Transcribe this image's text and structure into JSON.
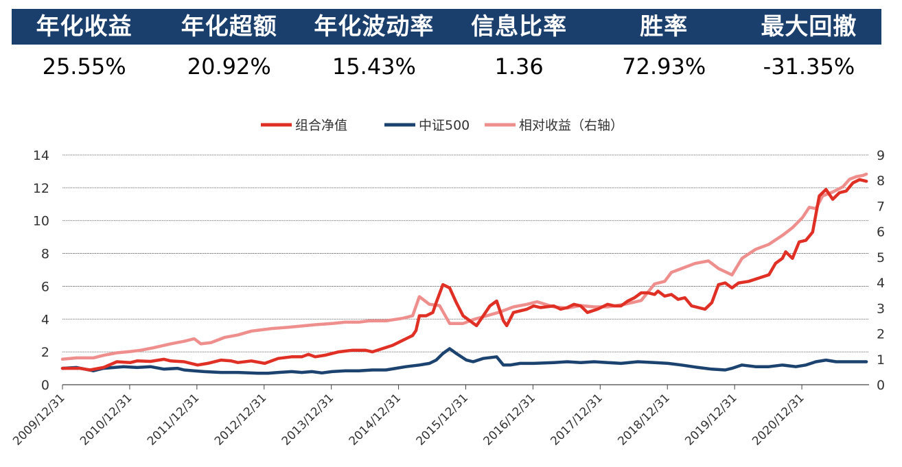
{
  "metrics": {
    "headers": [
      "年化收益",
      "年化超额",
      "年化波动率",
      "信息比率",
      "胜率",
      "最大回撤"
    ],
    "values": [
      "25.55%",
      "20.92%",
      "15.43%",
      "1.36",
      "72.93%",
      "-31.35%"
    ]
  },
  "chart_data": {
    "type": "line",
    "title": "",
    "legend_position": "top-center",
    "grid": true,
    "y_left": {
      "range": [
        0,
        14
      ],
      "ticks": [
        "0",
        "2",
        "4",
        "6",
        "8",
        "10",
        "12",
        "14"
      ]
    },
    "y_right": {
      "range": [
        0,
        9
      ],
      "ticks": [
        "0",
        "1",
        "2",
        "3",
        "4",
        "5",
        "6",
        "7",
        "8",
        "9"
      ]
    },
    "x_ticks": [
      "2009/12/31",
      "2010/12/31",
      "2011/12/31",
      "2012/12/31",
      "2013/12/31",
      "2014/12/31",
      "2015/12/31",
      "2016/12/31",
      "2017/12/31",
      "2018/12/31",
      "2019/12/31",
      "2020/12/31"
    ],
    "series": [
      {
        "name": "组合净值",
        "axis": "left",
        "color": "#e03025",
        "points": [
          [
            2009.99,
            1.0
          ],
          [
            2010.25,
            1.0
          ],
          [
            2010.4,
            0.9
          ],
          [
            2010.6,
            1.05
          ],
          [
            2010.8,
            1.4
          ],
          [
            2011.0,
            1.35
          ],
          [
            2011.1,
            1.45
          ],
          [
            2011.3,
            1.42
          ],
          [
            2011.5,
            1.55
          ],
          [
            2011.6,
            1.45
          ],
          [
            2011.8,
            1.4
          ],
          [
            2012.0,
            1.2
          ],
          [
            2012.15,
            1.3
          ],
          [
            2012.35,
            1.5
          ],
          [
            2012.5,
            1.45
          ],
          [
            2012.6,
            1.35
          ],
          [
            2012.8,
            1.45
          ],
          [
            2013.0,
            1.3
          ],
          [
            2013.2,
            1.6
          ],
          [
            2013.4,
            1.7
          ],
          [
            2013.55,
            1.7
          ],
          [
            2013.65,
            1.85
          ],
          [
            2013.75,
            1.7
          ],
          [
            2013.9,
            1.8
          ],
          [
            2014.1,
            2.0
          ],
          [
            2014.3,
            2.1
          ],
          [
            2014.5,
            2.1
          ],
          [
            2014.6,
            2.0
          ],
          [
            2014.75,
            2.2
          ],
          [
            2014.9,
            2.4
          ],
          [
            2015.0,
            2.6
          ],
          [
            2015.1,
            2.8
          ],
          [
            2015.2,
            3.0
          ],
          [
            2015.25,
            3.3
          ],
          [
            2015.3,
            4.2
          ],
          [
            2015.4,
            4.2
          ],
          [
            2015.5,
            4.4
          ],
          [
            2015.55,
            5.0
          ],
          [
            2015.65,
            6.1
          ],
          [
            2015.75,
            5.9
          ],
          [
            2015.85,
            5.0
          ],
          [
            2015.95,
            4.2
          ],
          [
            2016.05,
            3.9
          ],
          [
            2016.15,
            3.6
          ],
          [
            2016.25,
            4.2
          ],
          [
            2016.35,
            4.8
          ],
          [
            2016.45,
            5.1
          ],
          [
            2016.55,
            3.9
          ],
          [
            2016.6,
            3.6
          ],
          [
            2016.7,
            4.4
          ],
          [
            2016.9,
            4.6
          ],
          [
            2017.0,
            4.8
          ],
          [
            2017.1,
            4.7
          ],
          [
            2017.3,
            4.8
          ],
          [
            2017.4,
            4.6
          ],
          [
            2017.5,
            4.7
          ],
          [
            2017.6,
            4.9
          ],
          [
            2017.7,
            4.8
          ],
          [
            2017.8,
            4.4
          ],
          [
            2017.95,
            4.6
          ],
          [
            2018.1,
            4.9
          ],
          [
            2018.2,
            4.8
          ],
          [
            2018.3,
            4.8
          ],
          [
            2018.4,
            5.1
          ],
          [
            2018.5,
            5.3
          ],
          [
            2018.6,
            5.6
          ],
          [
            2018.7,
            5.6
          ],
          [
            2018.8,
            5.5
          ],
          [
            2018.85,
            5.7
          ],
          [
            2018.95,
            5.4
          ],
          [
            2019.05,
            5.5
          ],
          [
            2019.15,
            5.2
          ],
          [
            2019.25,
            5.3
          ],
          [
            2019.35,
            4.8
          ],
          [
            2019.45,
            4.7
          ],
          [
            2019.55,
            4.6
          ],
          [
            2019.65,
            5.0
          ],
          [
            2019.75,
            6.1
          ],
          [
            2019.85,
            6.2
          ],
          [
            2019.95,
            5.9
          ],
          [
            2020.05,
            6.2
          ],
          [
            2020.2,
            6.3
          ],
          [
            2020.35,
            6.5
          ],
          [
            2020.5,
            6.7
          ],
          [
            2020.6,
            7.4
          ],
          [
            2020.7,
            7.7
          ],
          [
            2020.75,
            8.1
          ],
          [
            2020.85,
            7.7
          ],
          [
            2020.95,
            8.7
          ],
          [
            2021.05,
            8.8
          ],
          [
            2021.15,
            9.3
          ],
          [
            2021.25,
            11.5
          ],
          [
            2021.35,
            11.9
          ],
          [
            2021.45,
            11.3
          ],
          [
            2021.55,
            11.7
          ],
          [
            2021.65,
            11.8
          ],
          [
            2021.75,
            12.3
          ],
          [
            2021.85,
            12.5
          ],
          [
            2021.95,
            12.4
          ]
        ]
      },
      {
        "name": "中证500",
        "axis": "left",
        "color": "#1c4370",
        "points": [
          [
            2009.99,
            1.0
          ],
          [
            2010.2,
            1.05
          ],
          [
            2010.45,
            0.85
          ],
          [
            2010.6,
            1.0
          ],
          [
            2010.9,
            1.1
          ],
          [
            2011.1,
            1.05
          ],
          [
            2011.3,
            1.1
          ],
          [
            2011.5,
            0.95
          ],
          [
            2011.7,
            1.0
          ],
          [
            2011.8,
            0.9
          ],
          [
            2011.95,
            0.85
          ],
          [
            2012.1,
            0.8
          ],
          [
            2012.35,
            0.75
          ],
          [
            2012.6,
            0.75
          ],
          [
            2012.9,
            0.7
          ],
          [
            2013.05,
            0.7
          ],
          [
            2013.2,
            0.75
          ],
          [
            2013.4,
            0.8
          ],
          [
            2013.55,
            0.75
          ],
          [
            2013.7,
            0.8
          ],
          [
            2013.85,
            0.72
          ],
          [
            2014.0,
            0.8
          ],
          [
            2014.2,
            0.85
          ],
          [
            2014.4,
            0.85
          ],
          [
            2014.6,
            0.9
          ],
          [
            2014.8,
            0.9
          ],
          [
            2014.95,
            1.0
          ],
          [
            2015.1,
            1.1
          ],
          [
            2015.3,
            1.2
          ],
          [
            2015.45,
            1.3
          ],
          [
            2015.55,
            1.5
          ],
          [
            2015.65,
            1.9
          ],
          [
            2015.75,
            2.2
          ],
          [
            2015.85,
            1.9
          ],
          [
            2016.0,
            1.5
          ],
          [
            2016.1,
            1.4
          ],
          [
            2016.25,
            1.6
          ],
          [
            2016.45,
            1.7
          ],
          [
            2016.55,
            1.2
          ],
          [
            2016.65,
            1.2
          ],
          [
            2016.8,
            1.3
          ],
          [
            2017.0,
            1.3
          ],
          [
            2017.3,
            1.35
          ],
          [
            2017.5,
            1.4
          ],
          [
            2017.7,
            1.35
          ],
          [
            2017.9,
            1.4
          ],
          [
            2018.1,
            1.35
          ],
          [
            2018.3,
            1.3
          ],
          [
            2018.55,
            1.4
          ],
          [
            2018.8,
            1.35
          ],
          [
            2019.0,
            1.3
          ],
          [
            2019.2,
            1.2
          ],
          [
            2019.45,
            1.05
          ],
          [
            2019.65,
            0.95
          ],
          [
            2019.85,
            0.9
          ],
          [
            2019.95,
            1.0
          ],
          [
            2020.1,
            1.2
          ],
          [
            2020.3,
            1.1
          ],
          [
            2020.5,
            1.1
          ],
          [
            2020.7,
            1.2
          ],
          [
            2020.9,
            1.1
          ],
          [
            2021.05,
            1.2
          ],
          [
            2021.2,
            1.4
          ],
          [
            2021.35,
            1.5
          ],
          [
            2021.5,
            1.4
          ],
          [
            2021.7,
            1.4
          ],
          [
            2021.95,
            1.4
          ]
        ]
      },
      {
        "name": "相对收益（右轴）",
        "axis": "right",
        "color": "#ef8f8d",
        "points": [
          [
            2009.99,
            1.0
          ],
          [
            2010.2,
            1.05
          ],
          [
            2010.45,
            1.05
          ],
          [
            2010.6,
            1.15
          ],
          [
            2010.8,
            1.25
          ],
          [
            2011.0,
            1.3
          ],
          [
            2011.15,
            1.35
          ],
          [
            2011.35,
            1.45
          ],
          [
            2011.6,
            1.6
          ],
          [
            2011.8,
            1.7
          ],
          [
            2011.95,
            1.8
          ],
          [
            2012.05,
            1.6
          ],
          [
            2012.2,
            1.65
          ],
          [
            2012.4,
            1.85
          ],
          [
            2012.6,
            1.95
          ],
          [
            2012.8,
            2.1
          ],
          [
            2012.95,
            2.15
          ],
          [
            2013.1,
            2.2
          ],
          [
            2013.35,
            2.25
          ],
          [
            2013.55,
            2.3
          ],
          [
            2013.75,
            2.35
          ],
          [
            2014.0,
            2.4
          ],
          [
            2014.2,
            2.45
          ],
          [
            2014.4,
            2.45
          ],
          [
            2014.55,
            2.5
          ],
          [
            2014.8,
            2.5
          ],
          [
            2015.05,
            2.6
          ],
          [
            2015.2,
            2.7
          ],
          [
            2015.3,
            3.45
          ],
          [
            2015.45,
            3.15
          ],
          [
            2015.6,
            3.1
          ],
          [
            2015.75,
            2.4
          ],
          [
            2015.95,
            2.4
          ],
          [
            2016.1,
            2.55
          ],
          [
            2016.3,
            2.7
          ],
          [
            2016.5,
            2.85
          ],
          [
            2016.7,
            3.05
          ],
          [
            2016.9,
            3.15
          ],
          [
            2017.05,
            3.25
          ],
          [
            2017.3,
            3.05
          ],
          [
            2017.5,
            3.0
          ],
          [
            2017.7,
            3.1
          ],
          [
            2017.9,
            3.05
          ],
          [
            2018.1,
            3.05
          ],
          [
            2018.35,
            3.15
          ],
          [
            2018.6,
            3.3
          ],
          [
            2018.8,
            3.95
          ],
          [
            2018.95,
            4.05
          ],
          [
            2019.05,
            4.4
          ],
          [
            2019.2,
            4.55
          ],
          [
            2019.4,
            4.75
          ],
          [
            2019.6,
            4.85
          ],
          [
            2019.75,
            4.55
          ],
          [
            2019.95,
            4.3
          ],
          [
            2020.1,
            4.95
          ],
          [
            2020.3,
            5.3
          ],
          [
            2020.5,
            5.5
          ],
          [
            2020.7,
            5.85
          ],
          [
            2020.85,
            6.15
          ],
          [
            2021.0,
            6.55
          ],
          [
            2021.1,
            6.95
          ],
          [
            2021.2,
            6.9
          ],
          [
            2021.3,
            7.4
          ],
          [
            2021.45,
            7.55
          ],
          [
            2021.6,
            7.75
          ],
          [
            2021.7,
            8.05
          ],
          [
            2021.8,
            8.15
          ],
          [
            2021.9,
            8.2
          ],
          [
            2021.95,
            8.25
          ]
        ]
      }
    ]
  }
}
